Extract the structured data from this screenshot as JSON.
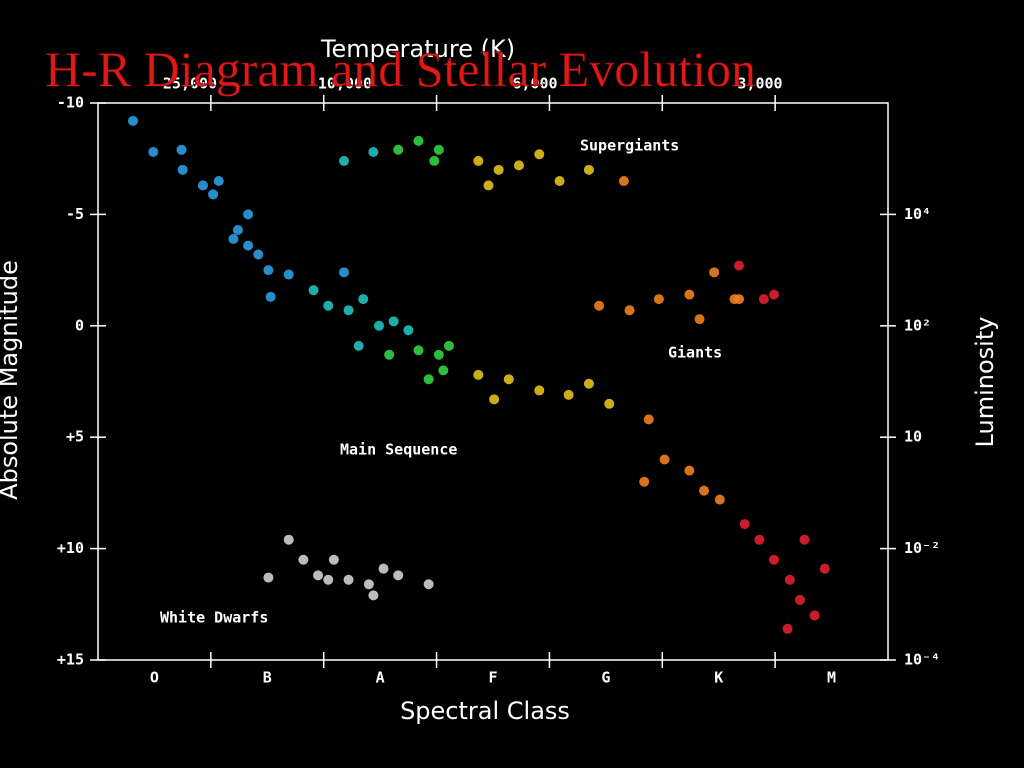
{
  "chart_data": {
    "type": "scatter",
    "title": "H-R Diagram and Stellar Evolution",
    "top_axis_label": "Temperature (K)",
    "top_ticks": [
      {
        "value": 25000,
        "label": "25,000"
      },
      {
        "value": 10000,
        "label": "10,000"
      },
      {
        "value": 6000,
        "label": "6,000"
      },
      {
        "value": 3000,
        "label": "3,000"
      }
    ],
    "x_label": "Spectral Class",
    "y_label": "Absolute Magnitude",
    "y2_label": "Luminosity",
    "categories": [
      "O",
      "B",
      "A",
      "F",
      "G",
      "K",
      "M"
    ],
    "xlim": [
      0,
      7
    ],
    "ylim": [
      -10,
      15
    ],
    "yticks": [
      -10,
      -5,
      0,
      {
        "value": 5,
        "label": "+5"
      },
      {
        "value": 10,
        "label": "+10"
      },
      {
        "value": 15,
        "label": "+15"
      }
    ],
    "y2ticks": [
      {
        "value": 10000,
        "label": "10⁴"
      },
      {
        "value": 100,
        "label": "10²"
      },
      10,
      {
        "value": 0.01,
        "label": "10⁻²"
      },
      {
        "value": 0.0001,
        "label": "10⁻⁴"
      }
    ],
    "annotations": [
      "Supergiants",
      "Giants",
      "Main Sequence",
      "White Dwarfs"
    ],
    "grid": false,
    "series": [
      {
        "color": "#2a9fe0",
        "x": [
          0.31,
          0.49,
          0.74,
          0.75,
          0.93,
          1.02,
          1.07,
          1.24,
          1.33,
          1.42,
          1.51,
          1.69,
          1.53,
          2.18,
          1.33,
          1.2
        ],
        "values": [
          -9.2,
          -7.8,
          -7.9,
          -7.0,
          -6.3,
          -5.9,
          -6.5,
          -4.3,
          -3.6,
          -3.2,
          -2.5,
          -2.3,
          -1.3,
          -2.4,
          -5.0,
          -3.9
        ]
      },
      {
        "color": "#22bfc0",
        "x": [
          1.91,
          2.04,
          2.22,
          2.35,
          2.49,
          2.62,
          2.75,
          2.31,
          2.18,
          2.44
        ],
        "values": [
          -1.6,
          -0.9,
          -0.7,
          -1.2,
          0,
          -0.2,
          0.2,
          0.9,
          -7.4,
          -7.8
        ]
      },
      {
        "color": "#33d044",
        "x": [
          2.66,
          2.84,
          3.02,
          2.98,
          2.84,
          3.02,
          3.11,
          2.93,
          3.06,
          2.58
        ],
        "values": [
          -7.9,
          -8.3,
          -7.9,
          -7.4,
          1.1,
          1.3,
          0.9,
          2.4,
          2.0,
          1.3
        ]
      },
      {
        "color": "#e0c21e",
        "x": [
          3.37,
          3.55,
          3.73,
          3.91,
          4.09,
          4.35,
          3.37,
          3.51,
          3.64,
          3.91,
          4.17,
          4.35,
          4.53,
          3.46
        ],
        "values": [
          -7.4,
          -7.0,
          -7.2,
          -7.7,
          -6.5,
          -7.0,
          2.2,
          3.3,
          2.4,
          2.9,
          3.1,
          2.6,
          3.5,
          -6.3
        ]
      },
      {
        "color": "#f08020",
        "x": [
          4.44,
          4.71,
          4.97,
          5.24,
          5.46,
          5.64,
          5.33,
          4.88,
          5.02,
          5.24,
          5.37,
          5.51,
          4.66,
          4.84,
          5.68
        ],
        "values": [
          -0.9,
          -0.7,
          -1.2,
          -1.4,
          -2.4,
          -1.2,
          -0.3,
          4.2,
          6.0,
          6.5,
          7.4,
          7.8,
          -6.5,
          7.0,
          -1.2
        ]
      },
      {
        "color": "#e02030",
        "x": [
          5.73,
          5.86,
          5.99,
          6.13,
          6.22,
          6.35,
          6.44,
          6.26,
          6.11,
          5.9,
          5.99,
          5.68
        ],
        "values": [
          8.9,
          9.6,
          10.5,
          11.4,
          12.3,
          13.0,
          10.9,
          9.6,
          13.6,
          -1.2,
          -1.4,
          -2.7
        ]
      },
      {
        "color": "#d0d0d0",
        "x": [
          1.69,
          1.82,
          1.95,
          2.09,
          2.22,
          2.4,
          2.53,
          2.66,
          2.93,
          1.51,
          2.44,
          2.04
        ],
        "values": [
          9.6,
          10.5,
          11.2,
          10.5,
          11.4,
          11.6,
          10.9,
          11.2,
          11.6,
          11.3,
          12.1,
          11.4
        ]
      }
    ]
  }
}
